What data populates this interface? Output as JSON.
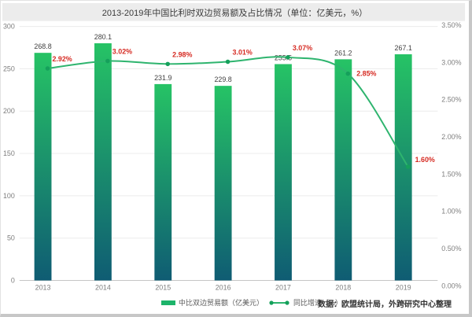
{
  "title": "2013-2019年中国比利时双边贸易额及占比情况（单位：亿美元，%）",
  "legend": {
    "bar_label": "中比双边贸易额（亿美元）",
    "line_label": "同比增速（%）"
  },
  "source": "数据：欧盟统计局，外跨研究中心整理",
  "chart_data": {
    "type": "bar+line",
    "title": "2013-2019年中国比利时双边贸易额及占比情况（单位：亿美元，%）",
    "categories": [
      "2013",
      "2014",
      "2015",
      "2016",
      "2017",
      "2018",
      "2019"
    ],
    "series": [
      {
        "name": "中比双边贸易额（亿美元）",
        "type": "bar",
        "axis": "left",
        "values": [
          268.8,
          280.1,
          231.9,
          229.8,
          255.5,
          261.2,
          267.1
        ],
        "labels": [
          "268.8",
          "280.1",
          "231.9",
          "229.8",
          "255.5",
          "261.2",
          "267.1"
        ]
      },
      {
        "name": "同比增速（%）",
        "type": "line",
        "axis": "right",
        "values": [
          2.92,
          3.02,
          2.98,
          3.01,
          3.07,
          2.85,
          1.6
        ],
        "labels": [
          "2.92%",
          "3.02%",
          "2.98%",
          "3.01%",
          "3.07%",
          "2.85%",
          "1.60%"
        ]
      }
    ],
    "left_axis": {
      "min": 0,
      "max": 300,
      "tick_step": 50,
      "tick_labels": [
        "300",
        "250",
        "200",
        "150",
        "100",
        "50",
        "0"
      ]
    },
    "right_axis": {
      "min": 0,
      "max": 3.5,
      "tick_labels": [
        "3.50%",
        "3.00%",
        "2.50%",
        "2.00%",
        "1.50%",
        "1.00%",
        "0.50%",
        "0.00%"
      ]
    },
    "grid": true,
    "legend_position": "bottom",
    "colors": {
      "bar_top": "#26c365",
      "bar_bottom": "#0f5c73",
      "line": "#2eb46e",
      "marker": "#15a05b",
      "pct_label": "#d62b23",
      "value_label": "#3f3f3f",
      "axis_text": "#7e7e7e",
      "grid": "#ebebeb",
      "baseline": "#c6c6c6",
      "title_bg": "#ececec"
    }
  }
}
